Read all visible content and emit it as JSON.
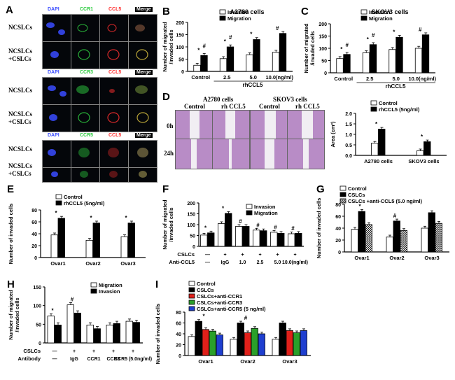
{
  "panel_labels": [
    "A",
    "B",
    "C",
    "D",
    "E",
    "F",
    "G",
    "H",
    "I"
  ],
  "panel_a": {
    "headers": [
      {
        "dapi": "DAPI",
        "marker": "CCR1",
        "ligand": "CCL5",
        "merge": "Merge"
      },
      {
        "dapi": "DAPI",
        "marker": "CCR3",
        "ligand": "CCL5",
        "merge": "Merge"
      },
      {
        "dapi": "DAPI",
        "marker": "CCR5",
        "ligand": "CCL5",
        "merge": "Merge"
      }
    ],
    "row_labels": [
      "NCSLCs",
      "NCSLCs\n+CSLCs"
    ]
  },
  "panel_d": {
    "groups": [
      "A2780 cells",
      "SKOV3 cells"
    ],
    "cols": [
      "Control",
      "rh CCL5",
      "Control",
      "rh CCL5"
    ],
    "rows": [
      "0h",
      "24h"
    ]
  },
  "chart_data": [
    {
      "id": "B",
      "type": "bar",
      "title": "A2780 cells",
      "ylabel": "Number of migrated\n/invaded cells",
      "ylim": [
        0,
        200
      ],
      "yticks": [
        0,
        50,
        100,
        150,
        200
      ],
      "categories": [
        "Control",
        "2.5",
        "5.0",
        "10.0(ng/ml)"
      ],
      "xgroup": "rhCCL5",
      "series": [
        {
          "name": "Invasion",
          "values": [
            25,
            52,
            68,
            78
          ]
        },
        {
          "name": "Migration",
          "values": [
            65,
            100,
            130,
            155
          ]
        }
      ],
      "annotations": [
        "*",
        "*",
        "*",
        "#",
        "#",
        "#"
      ]
    },
    {
      "id": "C",
      "type": "bar",
      "title": "SKOV3 cells",
      "ylabel": "Number of migrated\n/invaded cells",
      "ylim": [
        0,
        200
      ],
      "yticks": [
        0,
        50,
        100,
        150,
        200
      ],
      "categories": [
        "Control",
        "2.5",
        "5.0",
        "10.0(ng/ml)"
      ],
      "xgroup": "rhCCL5",
      "series": [
        {
          "name": "Invasion",
          "values": [
            58,
            82,
            95,
            100
          ]
        },
        {
          "name": "Migration",
          "values": [
            75,
            115,
            145,
            155
          ]
        }
      ],
      "annotations": [
        "*",
        "*",
        "*",
        "#",
        "#",
        "#"
      ]
    },
    {
      "id": "D",
      "type": "bar",
      "ylabel": "Area (cm²)",
      "ylim": [
        0,
        2.0
      ],
      "yticks": [
        0.0,
        0.5,
        1.0,
        1.5,
        2.0
      ],
      "categories": [
        "A2780 cells",
        "SKOV3 cells"
      ],
      "series": [
        {
          "name": "Control",
          "values": [
            0.58,
            0.22
          ]
        },
        {
          "name": "rhCCL5 (5ng/ml)",
          "values": [
            1.25,
            0.65
          ]
        }
      ],
      "annotations": [
        "*",
        "*"
      ]
    },
    {
      "id": "E",
      "type": "bar",
      "ylabel": "Number of invaded cells",
      "ylim": [
        0,
        80
      ],
      "yticks": [
        0,
        20,
        40,
        60,
        80
      ],
      "categories": [
        "Ovar1",
        "Ovar2",
        "Ovar3"
      ],
      "series": [
        {
          "name": "Control",
          "values": [
            38,
            29,
            35
          ]
        },
        {
          "name": "rhCCL5 (5ng/ml)",
          "values": [
            66,
            58,
            58
          ]
        }
      ],
      "annotations": [
        "*",
        "*",
        "*"
      ]
    },
    {
      "id": "F",
      "type": "bar",
      "ylabel": "Number of migrated\n/invaded cells",
      "ylim": [
        0,
        200
      ],
      "yticks": [
        0,
        50,
        100,
        150,
        200
      ],
      "categories": [
        "—",
        "IgG",
        "1.0",
        "2.5",
        "5.0",
        "10.0(ng/ml)"
      ],
      "row_labels": [
        "CSLCs",
        "Anti-CCL5"
      ],
      "row_values": [
        [
          "—",
          "+",
          "+",
          "+",
          "+",
          "+"
        ],
        [
          "—",
          "IgG",
          "1.0",
          "2.5",
          "5.0",
          "10.0(ng/ml)"
        ]
      ],
      "series": [
        {
          "name": "Invasion",
          "values": [
            52,
            105,
            92,
            75,
            65,
            58
          ]
        },
        {
          "name": "Migration",
          "values": [
            62,
            152,
            92,
            72,
            60,
            60
          ]
        }
      ],
      "annotations": [
        "*",
        "*",
        "#",
        "#",
        "#",
        "#"
      ]
    },
    {
      "id": "G",
      "type": "bar",
      "ylabel": "Number of invaded cells",
      "ylim": [
        0,
        80
      ],
      "yticks": [
        0,
        20,
        40,
        60,
        80
      ],
      "categories": [
        "Ovar1",
        "Ovar2",
        "Ovar3"
      ],
      "series": [
        {
          "name": "Control",
          "values": [
            38,
            25,
            40
          ]
        },
        {
          "name": "CSLCs",
          "values": [
            68,
            52,
            66
          ]
        },
        {
          "name": "CSLCs +anti-CCL5 (5.0 ng/ml)",
          "values": [
            46,
            36,
            48
          ]
        }
      ],
      "annotations": [
        "*",
        "#"
      ]
    },
    {
      "id": "H",
      "type": "bar",
      "ylabel": "Number of migrated\n/invaded cells",
      "ylim": [
        0,
        150
      ],
      "yticks": [
        0,
        50,
        100,
        150
      ],
      "categories": [
        "—",
        "IgG",
        "CCR1",
        "CCR3",
        "CCR5 (5.0ng/ml)"
      ],
      "row_labels": [
        "CSLCs",
        "Antibody"
      ],
      "row_values": [
        [
          "—",
          "+",
          "+",
          "+",
          "+"
        ],
        [
          "—",
          "IgG",
          "CCR1",
          "CCR3",
          "CCR5 (5.0ng/ml)"
        ]
      ],
      "series": [
        {
          "name": "Migration",
          "values": [
            72,
            102,
            48,
            48,
            58
          ]
        },
        {
          "name": "Invasion",
          "values": [
            48,
            80,
            38,
            52,
            55
          ]
        }
      ],
      "annotations": [
        "*",
        "#"
      ]
    },
    {
      "id": "I",
      "type": "bar",
      "ylabel": "Number of invaded cells",
      "ylim": [
        0,
        80
      ],
      "yticks": [
        0,
        20,
        40,
        60,
        80
      ],
      "categories": [
        "Ovar1",
        "Ovar2",
        "Ovar3"
      ],
      "series": [
        {
          "name": "Control",
          "values": [
            35,
            30,
            30
          ]
        },
        {
          "name": "CSLCs",
          "values": [
            63,
            60,
            60
          ]
        },
        {
          "name": "CSLCs+anti-CCR1",
          "values": [
            48,
            42,
            46
          ]
        },
        {
          "name": "CSLCs+anti-CCR3",
          "values": [
            45,
            50,
            42
          ]
        },
        {
          "name": "CSLCs+anti-CCR5 (5 ng/ml)",
          "values": [
            38,
            40,
            46
          ]
        }
      ],
      "annotations": [
        "*",
        "#"
      ]
    }
  ],
  "colors": {
    "black": "#000000",
    "white": "#ffffff",
    "red": "#e0201a",
    "green": "#2aa02a",
    "blue": "#1f3fd0",
    "dapi": "#3a4cff",
    "ccr": "#2ecc40",
    "ccl5": "#ff3030"
  }
}
